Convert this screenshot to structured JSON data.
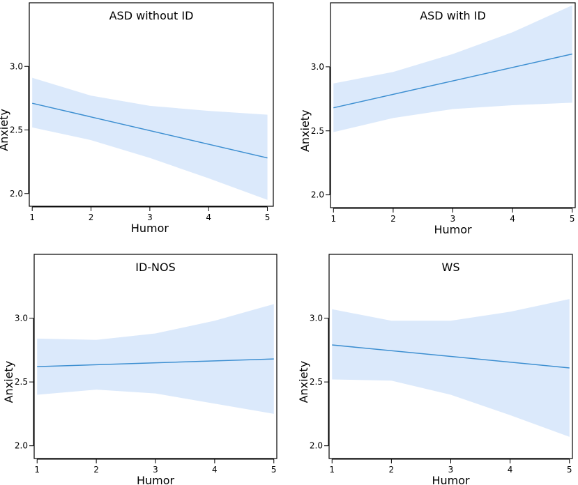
{
  "colors": {
    "band": "#dbe9fb",
    "line": "#3d8fd1"
  },
  "chart_data": [
    {
      "type": "line",
      "title": "ASD without ID",
      "xlabel": "Humor",
      "ylabel": "Anxiety",
      "x": [
        1,
        5
      ],
      "xlim": [
        0.95,
        5.1
      ],
      "ylim": [
        1.9,
        3.5
      ],
      "xticks": [
        "1",
        "2",
        "3",
        "4",
        "5"
      ],
      "yticks": [
        "2.0",
        "2.5",
        "3.0"
      ],
      "fit": [
        2.71,
        2.28
      ],
      "band_x": [
        1,
        2,
        3,
        4,
        5
      ],
      "band_lower": [
        2.52,
        2.42,
        2.28,
        2.12,
        1.95
      ],
      "band_upper": [
        2.91,
        2.77,
        2.69,
        2.65,
        2.62
      ]
    },
    {
      "type": "line",
      "title": "ASD with ID",
      "xlabel": "Humor",
      "ylabel": "Anxiety",
      "x": [
        1,
        5
      ],
      "xlim": [
        0.95,
        5.05
      ],
      "ylim": [
        1.9,
        3.5
      ],
      "xticks": [
        "1",
        "2",
        "3",
        "4",
        "5"
      ],
      "yticks": [
        "2.0",
        "2.5",
        "3.0"
      ],
      "fit": [
        2.68,
        3.1
      ],
      "band_x": [
        1,
        2,
        3,
        4,
        5
      ],
      "band_lower": [
        2.49,
        2.6,
        2.67,
        2.7,
        2.72
      ],
      "band_upper": [
        2.87,
        2.96,
        3.1,
        3.27,
        3.48
      ]
    },
    {
      "type": "line",
      "title": "ID-NOS",
      "xlabel": "Humor",
      "ylabel": "Anxiety",
      "x": [
        1,
        5
      ],
      "xlim": [
        0.95,
        5.05
      ],
      "ylim": [
        1.9,
        3.5
      ],
      "xticks": [
        "1",
        "2",
        "3",
        "4",
        "5"
      ],
      "yticks": [
        "2.0",
        "2.5",
        "3.0"
      ],
      "fit": [
        2.62,
        2.68
      ],
      "band_x": [
        1,
        2,
        3,
        4,
        5
      ],
      "band_lower": [
        2.4,
        2.44,
        2.41,
        2.33,
        2.25
      ],
      "band_upper": [
        2.84,
        2.83,
        2.88,
        2.98,
        3.11
      ]
    },
    {
      "type": "line",
      "title": "WS",
      "xlabel": "Humor",
      "ylabel": "Anxiety",
      "x": [
        1,
        5
      ],
      "xlim": [
        0.95,
        5.05
      ],
      "ylim": [
        1.9,
        3.5
      ],
      "xticks": [
        "1",
        "2",
        "3",
        "4",
        "5"
      ],
      "yticks": [
        "2.0",
        "2.5",
        "3.0"
      ],
      "fit": [
        2.79,
        2.61
      ],
      "band_x": [
        1,
        2,
        3,
        4,
        5
      ],
      "band_lower": [
        2.52,
        2.51,
        2.4,
        2.24,
        2.07
      ],
      "band_upper": [
        3.07,
        2.98,
        2.98,
        3.05,
        3.15
      ]
    }
  ]
}
